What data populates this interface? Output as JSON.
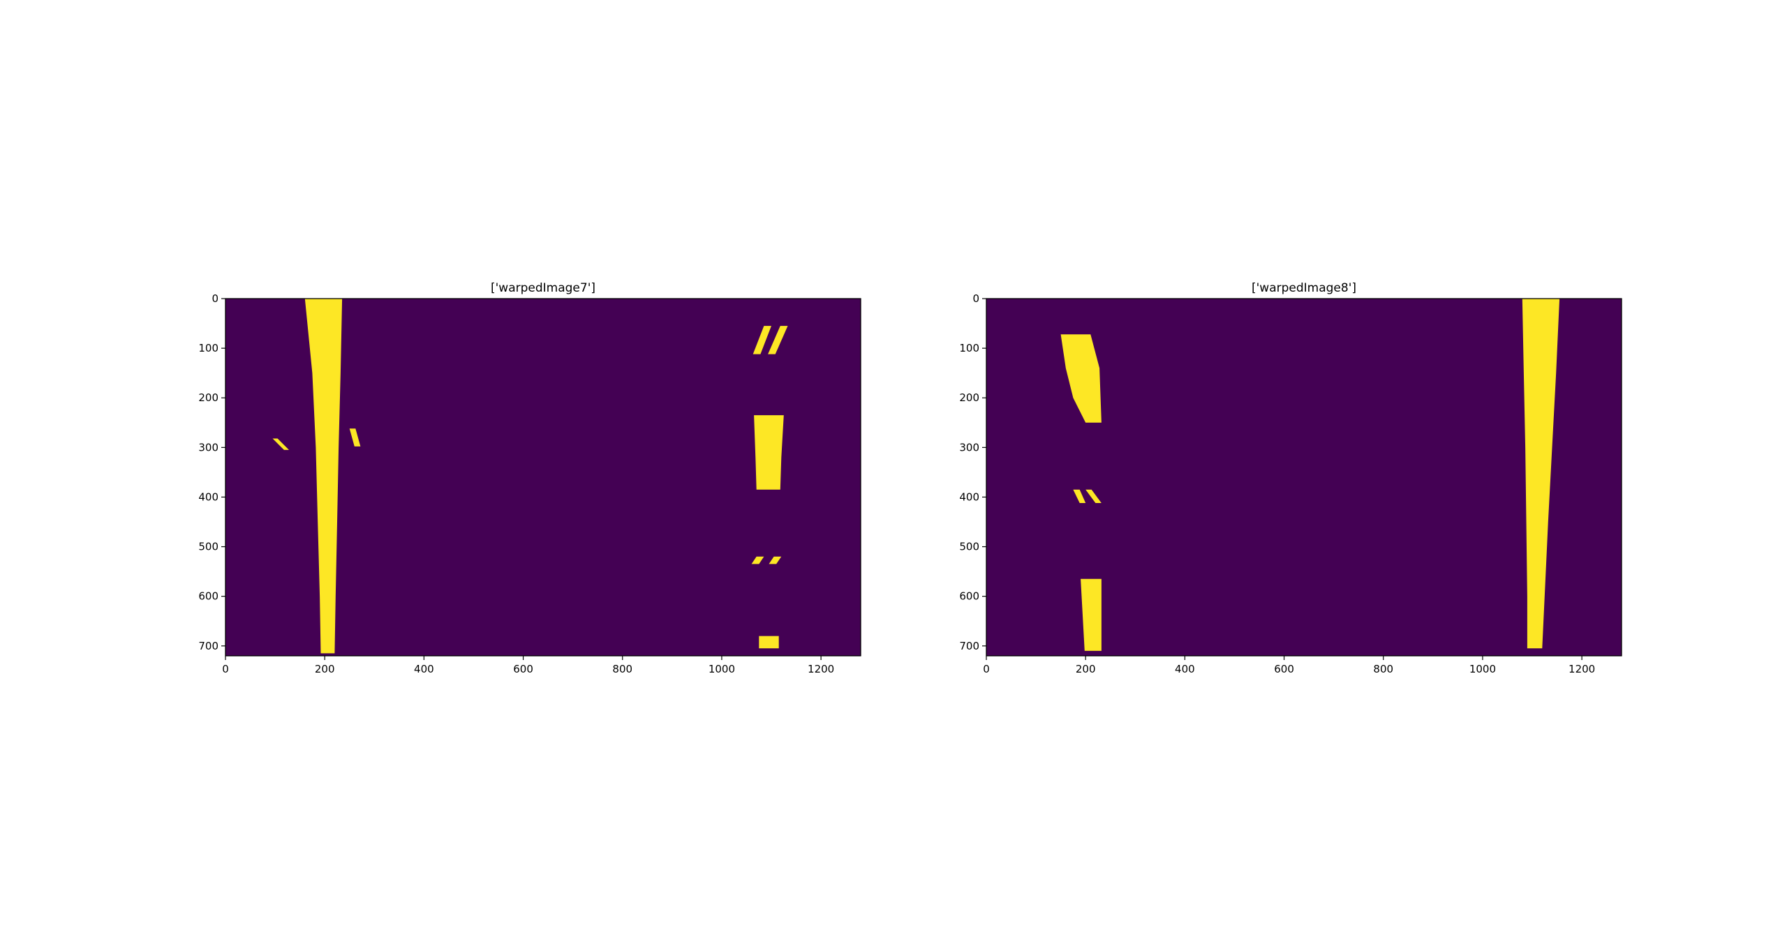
{
  "colors": {
    "background": "#440154",
    "lane": "#fde725",
    "frame": "#000000"
  },
  "chart_data": [
    {
      "type": "heatmap",
      "title": "['warpedImage7']",
      "xlabel": "",
      "ylabel": "",
      "xlim": [
        0,
        1280
      ],
      "ylim": [
        720,
        0
      ],
      "x_ticks": [
        0,
        200,
        400,
        600,
        800,
        1000,
        1200
      ],
      "y_ticks": [
        0,
        100,
        200,
        300,
        400,
        500,
        600,
        700
      ],
      "values": [
        0,
        1
      ],
      "regions": [
        {
          "label": "left-lane-line",
          "polygon": [
            [
              160,
              0
            ],
            [
              235,
              0
            ],
            [
              232,
              150
            ],
            [
              228,
              300
            ],
            [
              225,
              450
            ],
            [
              222,
              600
            ],
            [
              220,
              715
            ],
            [
              192,
              715
            ],
            [
              190,
              600
            ],
            [
              186,
              450
            ],
            [
              182,
              300
            ],
            [
              175,
              150
            ]
          ]
        },
        {
          "label": "left-fragment-1",
          "polygon": [
            [
              95,
              282
            ],
            [
              105,
              282
            ],
            [
              128,
              305
            ],
            [
              118,
              305
            ]
          ]
        },
        {
          "label": "left-fragment-2",
          "polygon": [
            [
              250,
              262
            ],
            [
              262,
              262
            ],
            [
              272,
              298
            ],
            [
              260,
              298
            ]
          ]
        },
        {
          "label": "right-dash-top-a",
          "polygon": [
            [
              1085,
              55
            ],
            [
              1100,
              55
            ],
            [
              1078,
              112
            ],
            [
              1063,
              112
            ]
          ]
        },
        {
          "label": "right-dash-top-b",
          "polygon": [
            [
              1118,
              55
            ],
            [
              1133,
              55
            ],
            [
              1108,
              112
            ],
            [
              1093,
              112
            ]
          ]
        },
        {
          "label": "right-dash-mid",
          "polygon": [
            [
              1065,
              235
            ],
            [
              1125,
              235
            ],
            [
              1120,
              320
            ],
            [
              1118,
              385
            ],
            [
              1070,
              385
            ],
            [
              1068,
              320
            ]
          ]
        },
        {
          "label": "right-dash-lower-a",
          "polygon": [
            [
              1070,
              520
            ],
            [
              1085,
              520
            ],
            [
              1075,
              535
            ],
            [
              1060,
              535
            ]
          ]
        },
        {
          "label": "right-dash-lower-b",
          "polygon": [
            [
              1105,
              520
            ],
            [
              1120,
              520
            ],
            [
              1110,
              535
            ],
            [
              1095,
              535
            ]
          ]
        },
        {
          "label": "right-dash-bottom",
          "polygon": [
            [
              1075,
              680
            ],
            [
              1115,
              680
            ],
            [
              1115,
              705
            ],
            [
              1075,
              705
            ]
          ]
        }
      ]
    },
    {
      "type": "heatmap",
      "title": "['warpedImage8']",
      "xlabel": "",
      "ylabel": "",
      "xlim": [
        0,
        1280
      ],
      "ylim": [
        720,
        0
      ],
      "x_ticks": [
        0,
        200,
        400,
        600,
        800,
        1000,
        1200
      ],
      "y_ticks": [
        0,
        100,
        200,
        300,
        400,
        500,
        600,
        700
      ],
      "values": [
        0,
        1
      ],
      "regions": [
        {
          "label": "left-dash-top",
          "polygon": [
            [
              150,
              72
            ],
            [
              210,
              72
            ],
            [
              228,
              140
            ],
            [
              232,
              250
            ],
            [
              200,
              250
            ],
            [
              175,
              200
            ],
            [
              160,
              140
            ]
          ]
        },
        {
          "label": "left-fragment-a",
          "polygon": [
            [
              175,
              385
            ],
            [
              188,
              385
            ],
            [
              200,
              412
            ],
            [
              188,
              412
            ]
          ]
        },
        {
          "label": "left-fragment-b",
          "polygon": [
            [
              200,
              385
            ],
            [
              212,
              385
            ],
            [
              232,
              412
            ],
            [
              220,
              412
            ]
          ]
        },
        {
          "label": "left-dash-bottom",
          "polygon": [
            [
              190,
              565
            ],
            [
              232,
              565
            ],
            [
              232,
              710
            ],
            [
              198,
              710
            ]
          ]
        },
        {
          "label": "right-lane-line",
          "polygon": [
            [
              1080,
              0
            ],
            [
              1155,
              0
            ],
            [
              1148,
              150
            ],
            [
              1140,
              300
            ],
            [
              1132,
              450
            ],
            [
              1125,
              600
            ],
            [
              1120,
              705
            ],
            [
              1090,
              705
            ],
            [
              1090,
              600
            ],
            [
              1088,
              450
            ],
            [
              1086,
              300
            ],
            [
              1083,
              150
            ]
          ]
        }
      ]
    }
  ]
}
